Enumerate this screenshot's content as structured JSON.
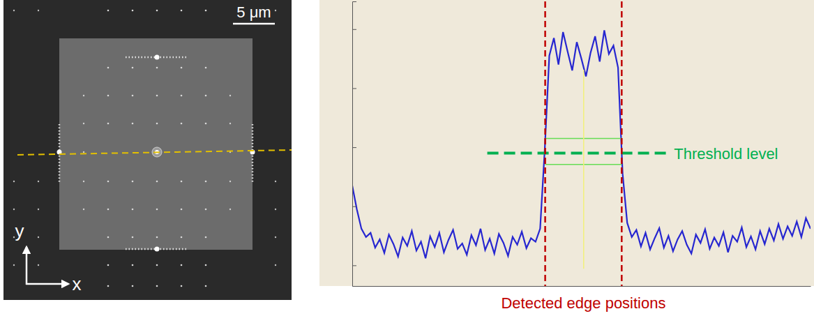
{
  "image_panel": {
    "scale_bar_label": "5 μm",
    "axis_labels": {
      "x": "x",
      "y": "y"
    }
  },
  "chart_data": {
    "type": "line",
    "color": "#2626d0",
    "xlim": [
      0,
      100
    ],
    "ylim": [
      -0.35,
      4.47
    ],
    "yticks": [
      0,
      1,
      2,
      3,
      4
    ],
    "tick_labels": false,
    "x": [
      0,
      1,
      2,
      3,
      4,
      5,
      6,
      7,
      8,
      9,
      10,
      11,
      12,
      13,
      14,
      15,
      16,
      17,
      18,
      19,
      20,
      21,
      22,
      23,
      24,
      25,
      26,
      27,
      28,
      29,
      30,
      31,
      32,
      33,
      34,
      35,
      36,
      37,
      38,
      39,
      40,
      41,
      42,
      43,
      44,
      45,
      46,
      47,
      48,
      49,
      50,
      51,
      52,
      53,
      54,
      55,
      56,
      57,
      58,
      59,
      60,
      61,
      62,
      63,
      64,
      65,
      66,
      67,
      68,
      69,
      70,
      71,
      72,
      73,
      74,
      75,
      76,
      77,
      78,
      79,
      80,
      81,
      82,
      83,
      84,
      85,
      86,
      87,
      88,
      89,
      90,
      91,
      92,
      93,
      94,
      95,
      96,
      97,
      98,
      99,
      100
    ],
    "values": [
      1.35,
      0.95,
      0.62,
      0.48,
      0.55,
      0.3,
      0.44,
      0.21,
      0.52,
      0.36,
      0.15,
      0.47,
      0.33,
      0.58,
      0.25,
      0.4,
      0.12,
      0.49,
      0.31,
      0.55,
      0.22,
      0.43,
      0.6,
      0.28,
      0.37,
      0.18,
      0.51,
      0.34,
      0.62,
      0.26,
      0.45,
      0.2,
      0.53,
      0.38,
      0.16,
      0.48,
      0.35,
      0.57,
      0.29,
      0.46,
      0.4,
      0.62,
      1.95,
      3.55,
      3.85,
      3.4,
      3.95,
      3.62,
      3.3,
      3.78,
      3.5,
      3.2,
      3.6,
      3.88,
      3.45,
      3.98,
      3.58,
      3.72,
      3.35,
      1.55,
      0.72,
      0.48,
      0.6,
      0.32,
      0.55,
      0.27,
      0.46,
      0.63,
      0.3,
      0.5,
      0.24,
      0.44,
      0.58,
      0.35,
      0.2,
      0.52,
      0.38,
      0.61,
      0.28,
      0.47,
      0.33,
      0.56,
      0.22,
      0.5,
      0.4,
      0.64,
      0.31,
      0.49,
      0.27,
      0.58,
      0.36,
      0.62,
      0.42,
      0.7,
      0.45,
      0.66,
      0.5,
      0.74,
      0.48,
      0.8,
      0.62
    ],
    "threshold": {
      "label": "Threshold level",
      "value": 1.9
    },
    "threshold_band": [
      1.71,
      2.15
    ],
    "center_line": 50.5,
    "edges": {
      "label": "Detected edge positions",
      "values": [
        42.1,
        58.8
      ]
    }
  }
}
